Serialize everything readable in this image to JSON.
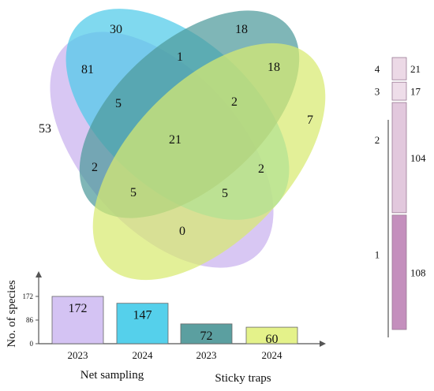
{
  "chart_data": [
    {
      "type": "venn",
      "title": "",
      "sets": [
        {
          "name": "Net sampling 2023",
          "color": "#c9b2ef",
          "total": 172
        },
        {
          "name": "Net sampling 2024",
          "color": "#4fcbe9",
          "total": 147
        },
        {
          "name": "Sticky traps 2023",
          "color": "#4e9a9b",
          "total": 72
        },
        {
          "name": "Sticky traps 2024",
          "color": "#d8ea70",
          "total": 60
        }
      ],
      "regions": [
        {
          "sets": [
            "Net sampling 2023"
          ],
          "value": 53
        },
        {
          "sets": [
            "Net sampling 2024"
          ],
          "value": 30
        },
        {
          "sets": [
            "Sticky traps 2023"
          ],
          "value": 18
        },
        {
          "sets": [
            "Sticky traps 2024"
          ],
          "value": 7
        },
        {
          "sets": [
            "Net sampling 2023",
            "Net sampling 2024"
          ],
          "value": 81
        },
        {
          "sets": [
            "Net sampling 2024",
            "Sticky traps 2023"
          ],
          "value": 1
        },
        {
          "sets": [
            "Sticky traps 2023",
            "Sticky traps 2024"
          ],
          "value": 18
        },
        {
          "sets": [
            "Net sampling 2023",
            "Sticky traps 2024"
          ],
          "value": 0
        },
        {
          "sets": [
            "Net sampling 2023",
            "Net sampling 2024",
            "Sticky traps 2023"
          ],
          "value": 5
        },
        {
          "sets": [
            "Net sampling 2024",
            "Sticky traps 2023",
            "Sticky traps 2024"
          ],
          "value": 2
        },
        {
          "sets": [
            "Net sampling 2023",
            "Sticky traps 2023"
          ],
          "value": 2
        },
        {
          "sets": [
            "Net sampling 2024",
            "Sticky traps 2024"
          ],
          "value": 2
        },
        {
          "sets": [
            "Net sampling 2023",
            "Net sampling 2024",
            "Sticky traps 2023",
            "Sticky traps 2024"
          ],
          "value": 21
        },
        {
          "sets": [
            "Net sampling 2023",
            "Net sampling 2024",
            "Sticky traps 2024"
          ],
          "value": 5
        },
        {
          "sets": [
            "Net sampling 2023",
            "Sticky traps 2023",
            "Sticky traps 2024"
          ],
          "value": 5
        }
      ]
    },
    {
      "type": "bar",
      "title": "",
      "ylabel": "No. of species",
      "xlabel": "",
      "ylim": [
        0,
        172
      ],
      "yticks": [
        0,
        86,
        172
      ],
      "categories": [
        "2023",
        "2024",
        "2023",
        "2024"
      ],
      "groups": [
        "Net sampling",
        "Sticky traps"
      ],
      "values": [
        172,
        147,
        72,
        60
      ],
      "colors": [
        "#d4c3f3",
        "#55d0eb",
        "#5b9fa0",
        "#e4f28a"
      ]
    },
    {
      "type": "stacked-bar",
      "title": "",
      "categories": [
        "1",
        "2",
        "3",
        "4"
      ],
      "values": [
        108,
        104,
        17,
        21
      ],
      "colors": [
        "#c48fbd",
        "#e2c8dd",
        "#eedde9",
        "#ecd9e6"
      ]
    }
  ]
}
